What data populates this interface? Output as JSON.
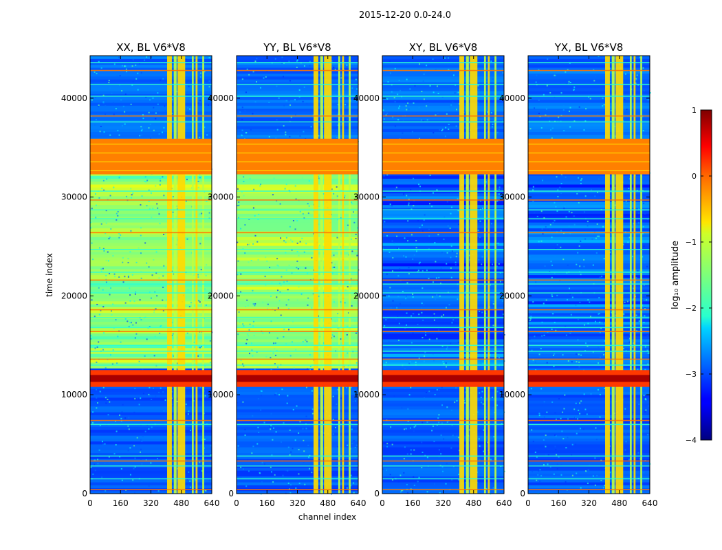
{
  "figure": {
    "suptitle": "2015-12-20 0.0-24.0",
    "colormap": "jet"
  },
  "chart_data": [
    {
      "type": "heatmap",
      "title": "XX, BL V6*V8",
      "xlabel": "",
      "ylabel": "time index",
      "xlim": [
        0,
        640
      ],
      "ylim": [
        0,
        44300
      ],
      "xticks": [
        "0",
        "160",
        "320",
        "480",
        "640"
      ],
      "yticks": [
        "0",
        "10000",
        "20000",
        "30000",
        "40000"
      ],
      "baseline_log_amplitude": -1.4,
      "pattern_note": "cross-polarization (XX) – band 12-32k is green (~-1.4)"
    },
    {
      "type": "heatmap",
      "title": "YY, BL V6*V8",
      "xlabel": "channel index",
      "ylabel": "",
      "xlim": [
        0,
        640
      ],
      "ylim": [
        0,
        44300
      ],
      "xticks": [
        "0",
        "160",
        "320",
        "480",
        "640"
      ],
      "yticks": [
        "0",
        "10000",
        "20000",
        "30000",
        "40000"
      ],
      "baseline_log_amplitude": -1.4,
      "pattern_note": "YY – band 12-32k is green (~-1.4)"
    },
    {
      "type": "heatmap",
      "title": "XY, BL V6*V8",
      "xlabel": "",
      "ylabel": "",
      "xlim": [
        0,
        640
      ],
      "ylim": [
        0,
        44300
      ],
      "xticks": [
        "0",
        "160",
        "320",
        "480",
        "640"
      ],
      "yticks": [
        "0",
        "10000",
        "20000",
        "30000",
        "40000"
      ],
      "baseline_log_amplitude": -2.9,
      "pattern_note": "XY – background mostly blue (~-2.9)"
    },
    {
      "type": "heatmap",
      "title": "YX, BL V6*V8",
      "xlabel": "",
      "ylabel": "",
      "xlim": [
        0,
        640
      ],
      "ylim": [
        0,
        44300
      ],
      "xticks": [
        "0",
        "160",
        "320",
        "480",
        "640"
      ],
      "yticks": [
        "0",
        "10000",
        "20000",
        "30000",
        "40000"
      ],
      "baseline_log_amplitude": -2.9,
      "pattern_note": "YX – background mostly blue (~-2.9)"
    }
  ],
  "features": {
    "bright_channel_bands": [
      [
        405,
        430
      ],
      [
        440,
        455
      ],
      [
        460,
        500
      ],
      [
        535,
        545
      ],
      [
        555,
        565
      ],
      [
        590,
        600
      ]
    ],
    "saturated_time_band": [
      32300,
      35900
    ],
    "strong_horizontal_event": [
      10800,
      12500
    ],
    "rfi_horizontal_lines": [
      400,
      1500,
      2800,
      3300,
      3800,
      7000,
      7400,
      11000,
      13000,
      13600,
      14400,
      15000,
      16400,
      16800,
      17800,
      18600,
      20300,
      21200,
      21600,
      22400,
      24700,
      26400,
      27800,
      28700,
      29700,
      30600,
      37600,
      38200,
      40200,
      41400,
      42800,
      43600
    ]
  },
  "colorbar": {
    "label": "log₁₀ amplitude",
    "vmin": -4,
    "vmax": 1,
    "ticks": [
      "1",
      "0",
      "−1",
      "−2",
      "−3",
      "−4"
    ]
  }
}
